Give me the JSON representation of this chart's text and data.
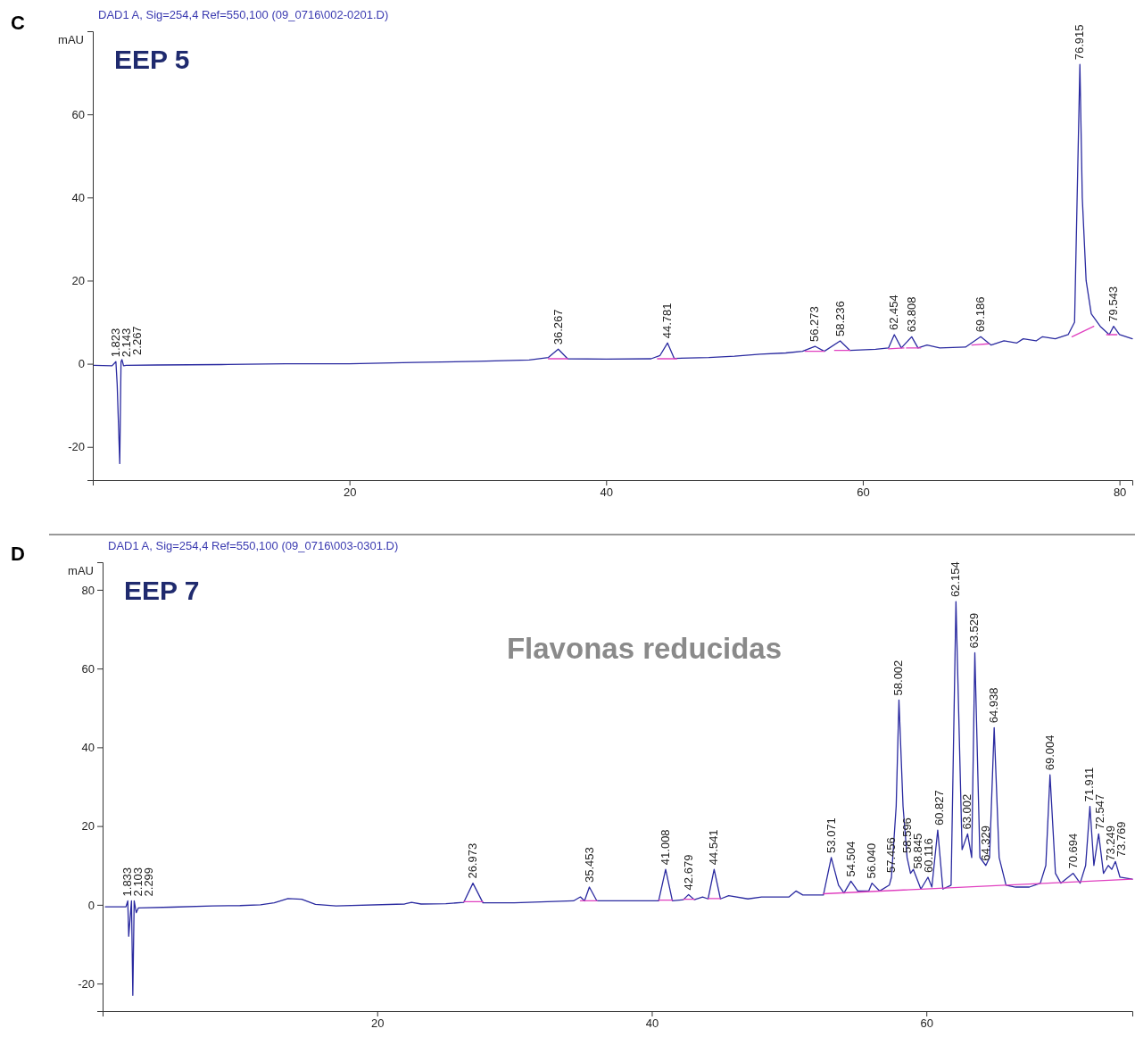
{
  "chart_data": [
    {
      "type": "line",
      "title": "C",
      "subtitle": "DAD1 A, Sig=254,4 Ref=550,100 (09_0716\\002-0201.D)",
      "ylabel": "mAU",
      "xlim": [
        0,
        81
      ],
      "ylim": [
        -28,
        80
      ],
      "xticks": [
        20,
        40,
        60,
        80
      ],
      "yticks": [
        -20,
        0,
        20,
        40,
        60
      ],
      "series": [
        {
          "color": "#2a2aa0",
          "x": [
            0.1,
            1.5,
            1.8,
            1.9,
            2.1,
            2.2,
            2.27,
            2.4,
            2.6,
            5,
            10,
            15,
            20,
            25,
            30,
            34,
            35.5,
            36.267,
            37,
            40,
            43.5,
            44.2,
            44.781,
            45.3,
            48,
            50,
            52,
            54,
            55.3,
            56.273,
            57,
            58.236,
            59,
            61,
            62,
            62.454,
            63,
            63.808,
            64.3,
            65,
            66,
            68,
            69.186,
            70,
            71,
            72,
            72.5,
            73.5,
            74,
            75,
            76,
            76.5,
            76.7,
            76.915,
            77.1,
            77.4,
            77.8,
            78.5,
            79.2,
            79.543,
            80,
            81
          ],
          "values": [
            -0.4,
            -0.5,
            0.5,
            -5,
            -24,
            0.5,
            1,
            -0.5,
            -0.4,
            -0.3,
            -0.2,
            0,
            0,
            0.3,
            0.6,
            0.9,
            1.5,
            3.5,
            1.2,
            1.1,
            1.2,
            2,
            5,
            1.3,
            1.5,
            1.8,
            2.3,
            2.6,
            3,
            4.2,
            3,
            5.5,
            3.2,
            3.5,
            3.8,
            7,
            3.8,
            6.5,
            3.8,
            4.5,
            3.8,
            4,
            6.5,
            4.5,
            5.5,
            5,
            6,
            5.5,
            6.5,
            6,
            7,
            10,
            40,
            72,
            40,
            20,
            12,
            9,
            7,
            9,
            7,
            6
          ]
        },
        {
          "color": "#e040c0",
          "x": [
            35.5,
            37,
            null,
            44,
            45.5,
            null,
            55.5,
            57,
            null,
            57.8,
            59,
            null,
            62,
            63.2,
            null,
            63.4,
            64.5,
            null,
            68.5,
            69.8,
            null,
            76.3,
            78,
            null,
            79,
            79.8
          ],
          "values": [
            1.2,
            1.2,
            null,
            1.2,
            1.2,
            null,
            3,
            3,
            null,
            3.2,
            3.2,
            null,
            3.6,
            3.8,
            null,
            3.8,
            3.8,
            null,
            4.5,
            4.8,
            null,
            6.5,
            9,
            null,
            7,
            7
          ]
        }
      ],
      "annotations": [
        "EEP 5",
        {
          "text": "1.823",
          "x": 1.823,
          "y": 0.5
        },
        {
          "text": "2.143",
          "x": 2.143,
          "y": 0.5
        },
        {
          "text": "2.267",
          "x": 2.267,
          "y": 1
        },
        {
          "text": "36.267",
          "x": 36.267,
          "y": 3.5
        },
        {
          "text": "44.781",
          "x": 44.781,
          "y": 5
        },
        {
          "text": "56.273",
          "x": 56.273,
          "y": 4.2
        },
        {
          "text": "58.236",
          "x": 58.236,
          "y": 5.5
        },
        {
          "text": "62.454",
          "x": 62.454,
          "y": 7
        },
        {
          "text": "63.808",
          "x": 63.808,
          "y": 6.5
        },
        {
          "text": "69.186",
          "x": 69.186,
          "y": 6.5
        },
        {
          "text": "76.915",
          "x": 76.915,
          "y": 72
        },
        {
          "text": "79.543",
          "x": 79.543,
          "y": 9
        }
      ]
    },
    {
      "type": "line",
      "title": "D",
      "subtitle": "DAD1 A, Sig=254,4 Ref=550,100 (09_0716\\003-0301.D)",
      "ylabel": "mAU",
      "xlim": [
        0,
        75
      ],
      "ylim": [
        -27,
        87
      ],
      "xticks": [
        20,
        40,
        60
      ],
      "yticks": [
        -20,
        0,
        20,
        40,
        60,
        80
      ],
      "series": [
        {
          "color": "#2a2aa0",
          "x": [
            0.2,
            1.7,
            1.833,
            1.9,
            2.103,
            2.2,
            2.299,
            2.45,
            2.6,
            5,
            8,
            10,
            11.5,
            12.5,
            13.5,
            14.5,
            15.5,
            17,
            22,
            22.5,
            23.2,
            25,
            26.3,
            26.973,
            27.7,
            30,
            34.3,
            34.8,
            35.1,
            35.453,
            36,
            40.5,
            41.008,
            41.5,
            42.3,
            42.679,
            43.1,
            43.7,
            44.1,
            44.541,
            45,
            45.6,
            47,
            48,
            50,
            50.5,
            51,
            52.5,
            53.071,
            53.6,
            54,
            54.504,
            55,
            55.8,
            56.04,
            56.6,
            57.3,
            57.456,
            57.8,
            58.002,
            58.3,
            58.596,
            58.845,
            59.05,
            59.6,
            60.116,
            60.4,
            60.827,
            61.2,
            61.8,
            62.154,
            62.6,
            63.002,
            63.3,
            63.529,
            63.9,
            64.329,
            64.6,
            64.938,
            65.3,
            65.8,
            66.5,
            67.5,
            68.3,
            68.7,
            69.004,
            69.4,
            69.8,
            70.694,
            71.2,
            71.6,
            71.911,
            72.2,
            72.547,
            72.9,
            73.249,
            73.5,
            73.769,
            74.1,
            75
          ],
          "values": [
            -0.5,
            -0.5,
            1,
            -8,
            1,
            -23,
            1,
            -2,
            -0.8,
            -0.6,
            -0.3,
            -0.2,
            0,
            0.5,
            1.6,
            1.4,
            0.1,
            -0.3,
            0.2,
            0.6,
            0.2,
            0.3,
            0.6,
            5.5,
            0.5,
            0.5,
            1,
            2,
            1,
            4.5,
            1,
            1,
            9,
            1,
            1.3,
            2.6,
            1.3,
            2,
            1.5,
            9,
            1.5,
            2.3,
            1.5,
            2,
            2,
            3.5,
            2.5,
            2.5,
            12,
            5,
            3,
            6,
            3.5,
            3.5,
            5.5,
            3.5,
            5,
            7,
            25,
            52,
            25,
            12,
            8,
            9,
            4,
            7,
            4.5,
            19,
            4,
            5,
            77,
            14,
            18,
            12,
            64,
            12,
            10,
            12,
            45,
            12,
            5,
            4.5,
            4.5,
            5.5,
            10,
            33,
            8,
            5.5,
            8,
            5.5,
            10,
            25,
            10,
            18,
            8,
            10,
            9,
            11,
            7,
            6.5
          ]
        },
        {
          "color": "#e040c0",
          "x": [
            26.3,
            27.7,
            null,
            34.8,
            36,
            null,
            40.5,
            41.5,
            null,
            42.3,
            43.1,
            null,
            44.1,
            45,
            null,
            52.5,
            75
          ],
          "values": [
            0.8,
            0.8,
            null,
            1,
            1,
            null,
            1.2,
            1.2,
            null,
            1.4,
            1.4,
            null,
            1.6,
            1.6,
            null,
            2.8,
            6.5
          ]
        }
      ],
      "annotations": [
        "EEP 7",
        "Flavonas reducidas",
        {
          "text": "1.833",
          "x": 1.833,
          "y": 1
        },
        {
          "text": "2.103",
          "x": 2.103,
          "y": 1
        },
        {
          "text": "2.299",
          "x": 2.299,
          "y": 1
        },
        {
          "text": "26.973",
          "x": 26.973,
          "y": 5.5
        },
        {
          "text": "35.453",
          "x": 35.453,
          "y": 4.5
        },
        {
          "text": "41.008",
          "x": 41.008,
          "y": 9
        },
        {
          "text": "42.679",
          "x": 42.679,
          "y": 2.6
        },
        {
          "text": "44.541",
          "x": 44.541,
          "y": 9
        },
        {
          "text": "53.071",
          "x": 53.071,
          "y": 12
        },
        {
          "text": "54.504",
          "x": 54.504,
          "y": 6
        },
        {
          "text": "56.040",
          "x": 56.04,
          "y": 5.5
        },
        {
          "text": "57.456",
          "x": 57.456,
          "y": 7
        },
        {
          "text": "58.002",
          "x": 58.002,
          "y": 52
        },
        {
          "text": "58.596",
          "x": 58.596,
          "y": 12
        },
        {
          "text": "58.845",
          "x": 58.845,
          "y": 8
        },
        {
          "text": "60.116",
          "x": 60.116,
          "y": 7
        },
        {
          "text": "60.827",
          "x": 60.827,
          "y": 19
        },
        {
          "text": "62.154",
          "x": 62.154,
          "y": 77
        },
        {
          "text": "63.002",
          "x": 63.002,
          "y": 18
        },
        {
          "text": "63.529",
          "x": 63.529,
          "y": 64
        },
        {
          "text": "64.329",
          "x": 64.329,
          "y": 10
        },
        {
          "text": "64.938",
          "x": 64.938,
          "y": 45
        },
        {
          "text": "69.004",
          "x": 69.004,
          "y": 33
        },
        {
          "text": "70.694",
          "x": 70.694,
          "y": 8
        },
        {
          "text": "71.911",
          "x": 71.911,
          "y": 25
        },
        {
          "text": "72.547",
          "x": 72.547,
          "y": 18
        },
        {
          "text": "73.249",
          "x": 73.249,
          "y": 10
        },
        {
          "text": "73.769",
          "x": 73.769,
          "y": 11
        }
      ]
    }
  ]
}
